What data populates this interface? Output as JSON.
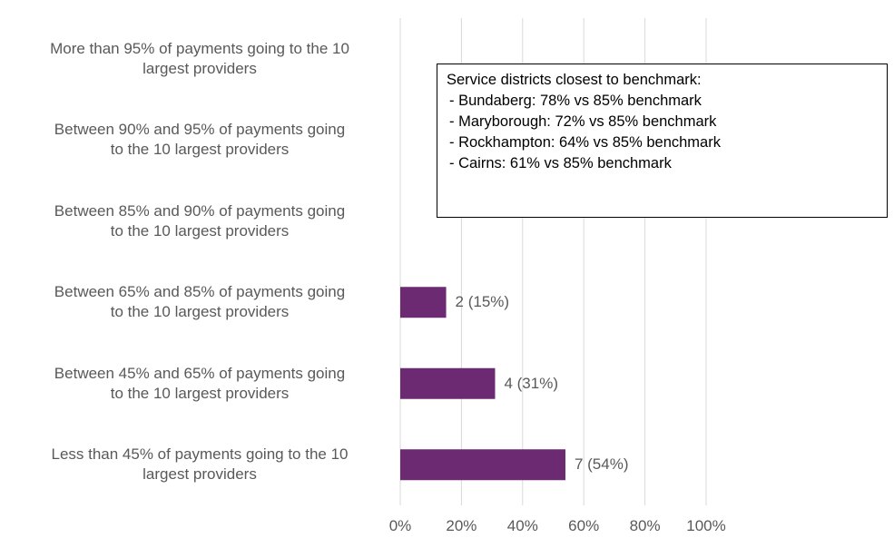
{
  "chart_data": {
    "type": "bar",
    "orientation": "horizontal",
    "categories": [
      "More than 95% of payments going to the 10\nlargest providers",
      "Between 90% and 95% of payments going\nto the 10 largest providers",
      "Between 85% and 90% of payments going\nto the 10 largest providers",
      "Between 65% and 85% of payments going\nto the 10 largest providers",
      "Between 45% and 65% of payments going\nto the 10 largest providers",
      "Less than 45% of payments going to the 10\nlargest providers"
    ],
    "values": [
      0,
      0,
      0,
      15,
      31,
      54
    ],
    "value_labels": [
      null,
      null,
      null,
      "2 (15%)",
      "4 (31%)",
      "7 (54%)"
    ],
    "color": "#6b2a72",
    "xlim": [
      0,
      100
    ],
    "xticks": [
      {
        "value": 0,
        "label": "0%"
      },
      {
        "value": 20,
        "label": "20%"
      },
      {
        "value": 40,
        "label": "40%"
      },
      {
        "value": 60,
        "label": "60%"
      },
      {
        "value": 80,
        "label": "80%"
      },
      {
        "value": 100,
        "label": "100%"
      }
    ],
    "grid": true,
    "annotation": [
      "Service districts closest to benchmark:",
      "- Bundaberg: 78% vs 85% benchmark",
      "- Maryborough: 72% vs 85% benchmark",
      "- Rockhampton: 64% vs 85% benchmark",
      "- Cairns: 61% vs 85% benchmark"
    ]
  }
}
